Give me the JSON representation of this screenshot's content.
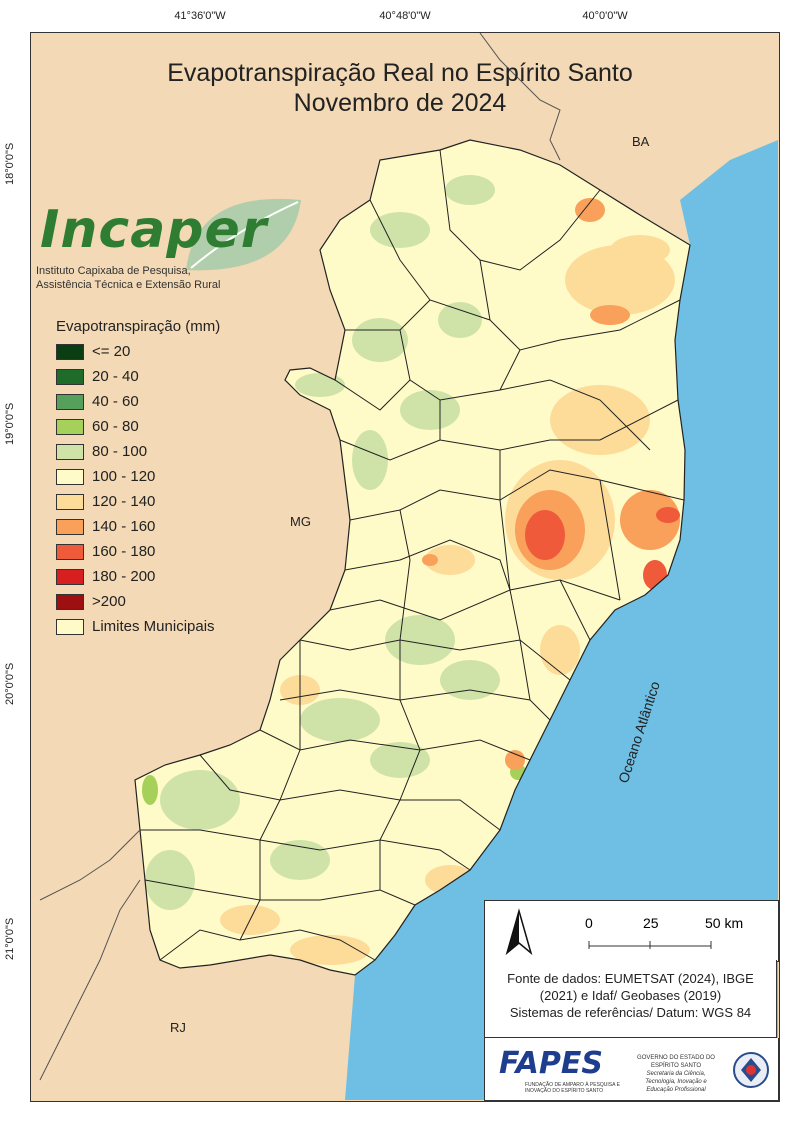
{
  "title": {
    "line1": "Evapotranspiração Real no Espírito Santo",
    "line2": "Novembro de 2024"
  },
  "coords": {
    "top": [
      "41°36'0\"W",
      "40°48'0\"W",
      "40°0'0\"W"
    ],
    "left": [
      "18°0'0\"S",
      "19°0'0\"S",
      "20°0'0\"S",
      "21°0'0\"S"
    ]
  },
  "logo": {
    "name": "Incaper",
    "subtitle_line1": "Instituto Capixaba de Pesquisa,",
    "subtitle_line2": "Assistência Técnica e Extensão Rural"
  },
  "legend": {
    "title": "Evapotranspiração (mm)",
    "items": [
      {
        "label": "<= 20",
        "color": "#0b3d12"
      },
      {
        "label": "20 - 40",
        "color": "#1f6b2a"
      },
      {
        "label": "40 - 60",
        "color": "#55a05a"
      },
      {
        "label": "60 - 80",
        "color": "#a5d15a"
      },
      {
        "label": "80 - 100",
        "color": "#cfe3a8"
      },
      {
        "label": "100 - 120",
        "color": "#fffbc8"
      },
      {
        "label": "120 - 140",
        "color": "#fddc9a"
      },
      {
        "label": "140 - 160",
        "color": "#f9a05a"
      },
      {
        "label": "160 - 180",
        "color": "#ee5a3a"
      },
      {
        "label": "180 - 200",
        "color": "#d81f1f"
      },
      {
        "label": ">200",
        "color": "#9e0f12"
      }
    ],
    "boundary_label": "Limites Municipais"
  },
  "regions": {
    "ba": "BA",
    "mg": "MG",
    "rj": "RJ",
    "ocean": "Oceano Atlântico"
  },
  "scale": {
    "labels": [
      "0",
      "25",
      "50 km"
    ]
  },
  "source": {
    "line1": "Fonte de dados: EUMETSAT (2024), IBGE",
    "line2": "(2021) e Idaf/ Geobases (2019)",
    "line3": "Sistemas de referências/ Datum: WGS 84"
  },
  "partners": {
    "fapes": "FAPES",
    "fapes_sub": "FUNDAÇÃO DE AMPARO À PESQUISA E INOVAÇÃO DO ESPÍRITO SANTO",
    "gov_line1": "GOVERNO DO ESTADO DO ESPÍRITO SANTO",
    "gov_line2": "Secretaria da Ciência, Tecnologia, Inovação e Educação Profissional"
  },
  "colors": {
    "land_outside": "#f3d9b5",
    "ocean": "#6fbfe4",
    "state_base": "#fffbc8"
  }
}
